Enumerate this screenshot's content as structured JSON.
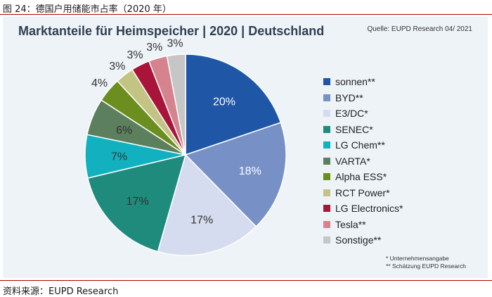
{
  "caption": "图 24：德国户用储能市占率（2020 年）",
  "source_note": "资料来源：EUPD Research",
  "chart_data": {
    "type": "pie",
    "title": "Marktanteile für Heimspeicher | 2020 | Deutschland",
    "source": "Quelle: EUPD Research 04/ 2021",
    "slices": [
      {
        "label": "sonnen**",
        "value": 20,
        "text": "20%",
        "color": "#1f56a5",
        "label_color": "#ffffff"
      },
      {
        "label": "BYD**",
        "value": 18,
        "text": "18%",
        "color": "#7791c7",
        "label_color": "#ffffff"
      },
      {
        "label": "E3/DC*",
        "value": 17,
        "text": "17%",
        "color": "#d6dcef",
        "label_color": "#333333"
      },
      {
        "label": "SENEC*",
        "value": 17,
        "text": "17%",
        "color": "#1e8b7d",
        "label_color": "#333333"
      },
      {
        "label": "LG Chem**",
        "value": 7,
        "text": "7%",
        "color": "#12b1bf",
        "label_color": "#333333"
      },
      {
        "label": "VARTA*",
        "value": 6,
        "text": "6%",
        "color": "#5c7f5e",
        "label_color": "#333333"
      },
      {
        "label": "Alpha ESS*",
        "value": 4,
        "text": "4%",
        "color": "#6b8e1f",
        "label_color": "#333333"
      },
      {
        "label": "RCT Power*",
        "value": 3,
        "text": "3%",
        "color": "#c3c384",
        "label_color": "#333333"
      },
      {
        "label": "LG Electronics*",
        "value": 3,
        "text": "3%",
        "color": "#a8143a",
        "label_color": "#333333"
      },
      {
        "label": "Tesla**",
        "value": 3,
        "text": "3%",
        "color": "#d5838e",
        "label_color": "#333333"
      },
      {
        "label": "Sonstige**",
        "value": 3,
        "text": "3%",
        "color": "#c6c6c6",
        "label_color": "#333333"
      }
    ],
    "footnotes": [
      "* Unternehmensangabe",
      "** Schätzung EUPD Research"
    ]
  }
}
